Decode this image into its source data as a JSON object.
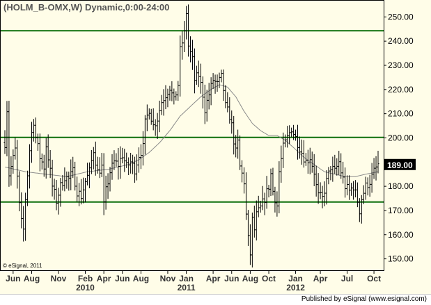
{
  "header": {
    "symbol_title": "(HOLM_B-OMX,W) Dynamic,0:00-24:00"
  },
  "footer": {
    "copyright": "© eSignal, 2011",
    "publisher": "Published by eSignal (www.esignal.com)"
  },
  "colors": {
    "background": "#fffde8",
    "bars": "#000000",
    "moving_average": "#8a8a8a",
    "support_resistance_lines": "#0b6e0b",
    "title_text": "#555555",
    "last_price_badge": "#000000"
  },
  "chart_data": {
    "type": "ohlc",
    "title": "(HOLM_B-OMX,W) Dynamic,0:00-24:00",
    "xlabel": "",
    "ylabel": "",
    "ylim": [
      145,
      257
    ],
    "y_ticks": [
      150,
      160,
      170,
      180,
      190,
      200,
      210,
      220,
      230,
      240,
      250
    ],
    "y_tick_labels": [
      "150.00",
      "160.00",
      "170.00",
      "180.00",
      "190.00",
      "200.00",
      "210.00",
      "220.00",
      "230.00",
      "240.00",
      "250.00"
    ],
    "x_ticks": [
      {
        "label": "Jun",
        "week": 4
      },
      {
        "label": "Aug",
        "week": 13
      },
      {
        "label": "Nov",
        "week": 26
      },
      {
        "label": "Feb",
        "week": 39
      },
      {
        "label": "Apr",
        "week": 48
      },
      {
        "label": "Jun",
        "week": 57
      },
      {
        "label": "Aug",
        "week": 66
      },
      {
        "label": "Nov",
        "week": 79
      },
      {
        "label": "Jan",
        "week": 88
      },
      {
        "label": "Apr",
        "week": 101
      },
      {
        "label": "Jun",
        "week": 110
      },
      {
        "label": "Aug",
        "week": 119
      },
      {
        "label": "Oct",
        "week": 128
      },
      {
        "label": "Jan",
        "week": 141
      },
      {
        "label": "Apr",
        "week": 153
      },
      {
        "label": "Jul",
        "week": 166
      },
      {
        "label": "Oct",
        "week": 179
      }
    ],
    "year_labels": [
      {
        "label": "2010",
        "week": 39
      },
      {
        "label": "2011",
        "week": 88
      },
      {
        "label": "2012",
        "week": 141
      }
    ],
    "horizontal_lines": [
      {
        "name": "resistance",
        "value": 244.3
      },
      {
        "name": "pivot",
        "value": 200.2
      },
      {
        "name": "support",
        "value": 173.5
      }
    ],
    "last_price": "189.00",
    "weeks_total": 182,
    "anchors": [
      [
        0,
        198
      ],
      [
        1,
        212
      ],
      [
        2,
        185
      ],
      [
        3,
        188
      ],
      [
        5,
        195
      ],
      [
        7,
        172
      ],
      [
        8,
        165
      ],
      [
        9,
        162
      ],
      [
        10,
        175
      ],
      [
        12,
        195
      ],
      [
        13,
        202
      ],
      [
        14,
        207
      ],
      [
        15,
        200
      ],
      [
        17,
        192
      ],
      [
        19,
        188
      ],
      [
        20,
        197
      ],
      [
        21,
        192
      ],
      [
        23,
        180
      ],
      [
        25,
        174
      ],
      [
        27,
        180
      ],
      [
        29,
        184
      ],
      [
        31,
        183
      ],
      [
        33,
        186
      ],
      [
        35,
        178
      ],
      [
        37,
        176
      ],
      [
        39,
        182
      ],
      [
        41,
        186
      ],
      [
        43,
        195
      ],
      [
        45,
        186
      ],
      [
        47,
        188
      ],
      [
        48,
        172
      ],
      [
        49,
        178
      ],
      [
        51,
        186
      ],
      [
        53,
        190
      ],
      [
        55,
        189
      ],
      [
        57,
        193
      ],
      [
        59,
        188
      ],
      [
        61,
        190
      ],
      [
        63,
        187
      ],
      [
        65,
        193
      ],
      [
        67,
        196
      ],
      [
        68,
        206
      ],
      [
        70,
        212
      ],
      [
        72,
        205
      ],
      [
        74,
        208
      ],
      [
        76,
        215
      ],
      [
        78,
        218
      ],
      [
        80,
        221
      ],
      [
        82,
        215
      ],
      [
        84,
        222
      ],
      [
        85,
        236
      ],
      [
        87,
        243
      ],
      [
        88,
        252
      ],
      [
        89,
        238
      ],
      [
        91,
        232
      ],
      [
        92,
        224
      ],
      [
        94,
        226
      ],
      [
        96,
        218
      ],
      [
        97,
        212
      ],
      [
        99,
        218
      ],
      [
        101,
        224
      ],
      [
        103,
        222
      ],
      [
        105,
        225
      ],
      [
        106,
        220
      ],
      [
        107,
        213
      ],
      [
        109,
        209
      ],
      [
        110,
        205
      ],
      [
        111,
        199
      ],
      [
        112,
        194
      ],
      [
        113,
        198
      ],
      [
        114,
        188
      ],
      [
        116,
        182
      ],
      [
        117,
        168
      ],
      [
        118,
        158
      ],
      [
        119,
        152
      ],
      [
        120,
        166
      ],
      [
        121,
        162
      ],
      [
        122,
        168
      ],
      [
        124,
        171
      ],
      [
        126,
        175
      ],
      [
        128,
        180
      ],
      [
        129,
        185
      ],
      [
        130,
        178
      ],
      [
        132,
        172
      ],
      [
        133,
        186
      ],
      [
        135,
        196
      ],
      [
        137,
        200
      ],
      [
        139,
        204
      ],
      [
        140,
        202
      ],
      [
        142,
        198
      ],
      [
        144,
        194
      ],
      [
        146,
        190
      ],
      [
        148,
        192
      ],
      [
        150,
        186
      ],
      [
        151,
        180
      ],
      [
        152,
        176
      ],
      [
        154,
        175
      ],
      [
        156,
        182
      ],
      [
        158,
        188
      ],
      [
        160,
        186
      ],
      [
        162,
        190
      ],
      [
        163,
        186
      ],
      [
        165,
        180
      ],
      [
        167,
        178
      ],
      [
        169,
        180
      ],
      [
        171,
        174
      ],
      [
        172,
        170
      ],
      [
        173,
        175
      ],
      [
        175,
        180
      ],
      [
        177,
        182
      ],
      [
        179,
        186
      ],
      [
        181,
        189
      ]
    ],
    "ma_anchors": [
      [
        0,
        188
      ],
      [
        10,
        186
      ],
      [
        20,
        185
      ],
      [
        30,
        184
      ],
      [
        40,
        186
      ],
      [
        50,
        187
      ],
      [
        60,
        189
      ],
      [
        65,
        191
      ],
      [
        70,
        194
      ],
      [
        75,
        198
      ],
      [
        80,
        203
      ],
      [
        85,
        209
      ],
      [
        90,
        213
      ],
      [
        95,
        217
      ],
      [
        100,
        220
      ],
      [
        104,
        222
      ],
      [
        108,
        221
      ],
      [
        112,
        217
      ],
      [
        116,
        211
      ],
      [
        120,
        206
      ],
      [
        124,
        203
      ],
      [
        128,
        201
      ],
      [
        132,
        201
      ],
      [
        136,
        199
      ],
      [
        140,
        196
      ],
      [
        145,
        192
      ],
      [
        150,
        189
      ],
      [
        155,
        186
      ],
      [
        160,
        185
      ],
      [
        165,
        184
      ],
      [
        170,
        184
      ],
      [
        175,
        185
      ],
      [
        181,
        186
      ]
    ]
  }
}
